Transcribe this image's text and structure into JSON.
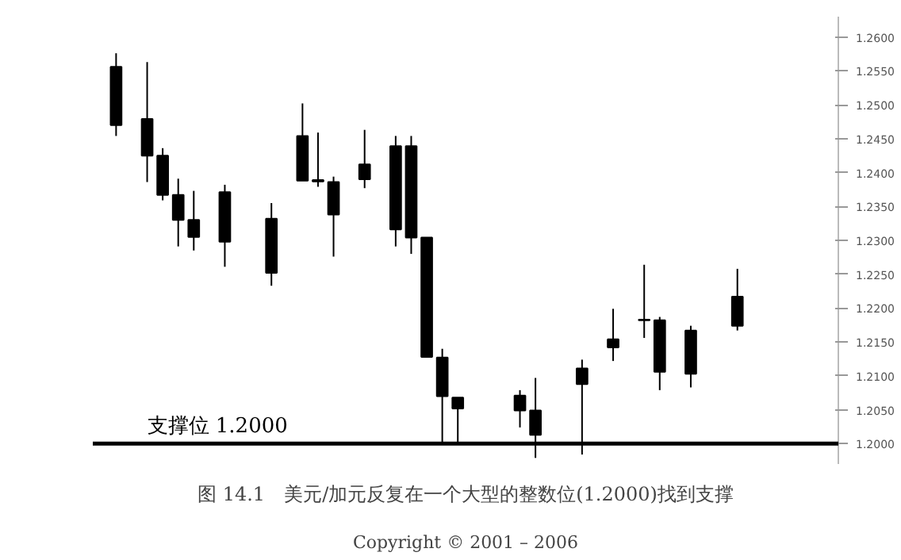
{
  "chart_data": {
    "type": "candlestick",
    "title": "图 14.1　美元/加元反复在一个大型的整数位(1.2000)找到支撑",
    "annotations": [
      "Copyright © 2001 – 2006"
    ],
    "categories": [
      null,
      null,
      null,
      null,
      null,
      null,
      null,
      null,
      null,
      null,
      null,
      null,
      null,
      null,
      null,
      null,
      null,
      null,
      null,
      null,
      null,
      null,
      null,
      null,
      null,
      null,
      null,
      null,
      null,
      null,
      null,
      null,
      null,
      null,
      null,
      null,
      null,
      null,
      null,
      null,
      null,
      null,
      null,
      null,
      null,
      null,
      null,
      null
    ],
    "ohlc": [
      null,
      [
        1.2556,
        1.2576,
        1.2454,
        1.247
      ],
      null,
      [
        1.2479,
        1.2563,
        1.2386,
        1.2425
      ],
      [
        1.2425,
        1.2436,
        1.2359,
        1.2367
      ],
      [
        1.2367,
        1.2391,
        1.2291,
        1.233
      ],
      [
        1.233,
        1.2373,
        1.2285,
        1.2305
      ],
      null,
      [
        1.2371,
        1.2382,
        1.2261,
        1.2298
      ],
      null,
      null,
      [
        1.2332,
        1.2355,
        1.2233,
        1.2252
      ],
      null,
      [
        1.2454,
        1.2502,
        1.2388,
        1.2388
      ],
      [
        1.2389,
        1.2459,
        1.2379,
        1.2387
      ],
      [
        1.2386,
        1.2394,
        1.2276,
        1.2338
      ],
      null,
      [
        1.2412,
        1.2463,
        1.2377,
        1.239
      ],
      null,
      [
        1.2439,
        1.2454,
        1.2291,
        1.2316
      ],
      [
        1.2439,
        1.2454,
        1.228,
        1.2304
      ],
      [
        1.2304,
        1.2304,
        1.2128,
        1.2128
      ],
      [
        1.2127,
        1.214,
        1.2,
        1.207
      ],
      [
        1.2068,
        1.2068,
        1.2,
        1.2052
      ],
      null,
      null,
      null,
      [
        1.2071,
        1.2079,
        1.2024,
        1.2049
      ],
      [
        1.2049,
        1.2097,
        1.1979,
        1.2013
      ],
      null,
      null,
      [
        1.2111,
        1.2124,
        1.1984,
        1.2088
      ],
      null,
      [
        1.2154,
        1.2199,
        1.2122,
        1.2142
      ],
      null,
      [
        1.2183,
        1.2264,
        1.2156,
        1.2182
      ],
      [
        1.2182,
        1.2187,
        1.2079,
        1.2106
      ],
      null,
      [
        1.2167,
        1.2174,
        1.2083,
        1.2103
      ],
      null,
      null,
      [
        1.2217,
        1.2258,
        1.2167,
        1.2174
      ],
      null,
      null,
      null,
      null,
      null,
      null
    ],
    "color": "#000000",
    "ylim": [
      1.197,
      1.263
    ],
    "yticks": [
      {
        "value": 1.2,
        "label": "1.2000"
      },
      {
        "value": 1.205,
        "label": "1.2050"
      },
      {
        "value": 1.21,
        "label": "1.2100"
      },
      {
        "value": 1.215,
        "label": "1.2150"
      },
      {
        "value": 1.22,
        "label": "1.2200"
      },
      {
        "value": 1.225,
        "label": "1.2250"
      },
      {
        "value": 1.23,
        "label": "1.2300"
      },
      {
        "value": 1.235,
        "label": "1.2350"
      },
      {
        "value": 1.24,
        "label": "1.2400"
      },
      {
        "value": 1.245,
        "label": "1.2450"
      },
      {
        "value": 1.25,
        "label": "1.2500"
      },
      {
        "value": 1.255,
        "label": "1.2550"
      },
      {
        "value": 1.26,
        "label": "1.2600"
      }
    ],
    "tick_labels": "y",
    "ref_lines": [
      {
        "axis": "y",
        "value": 1.2,
        "label": "支撑位 1.2000",
        "color": "#000000"
      }
    ]
  }
}
